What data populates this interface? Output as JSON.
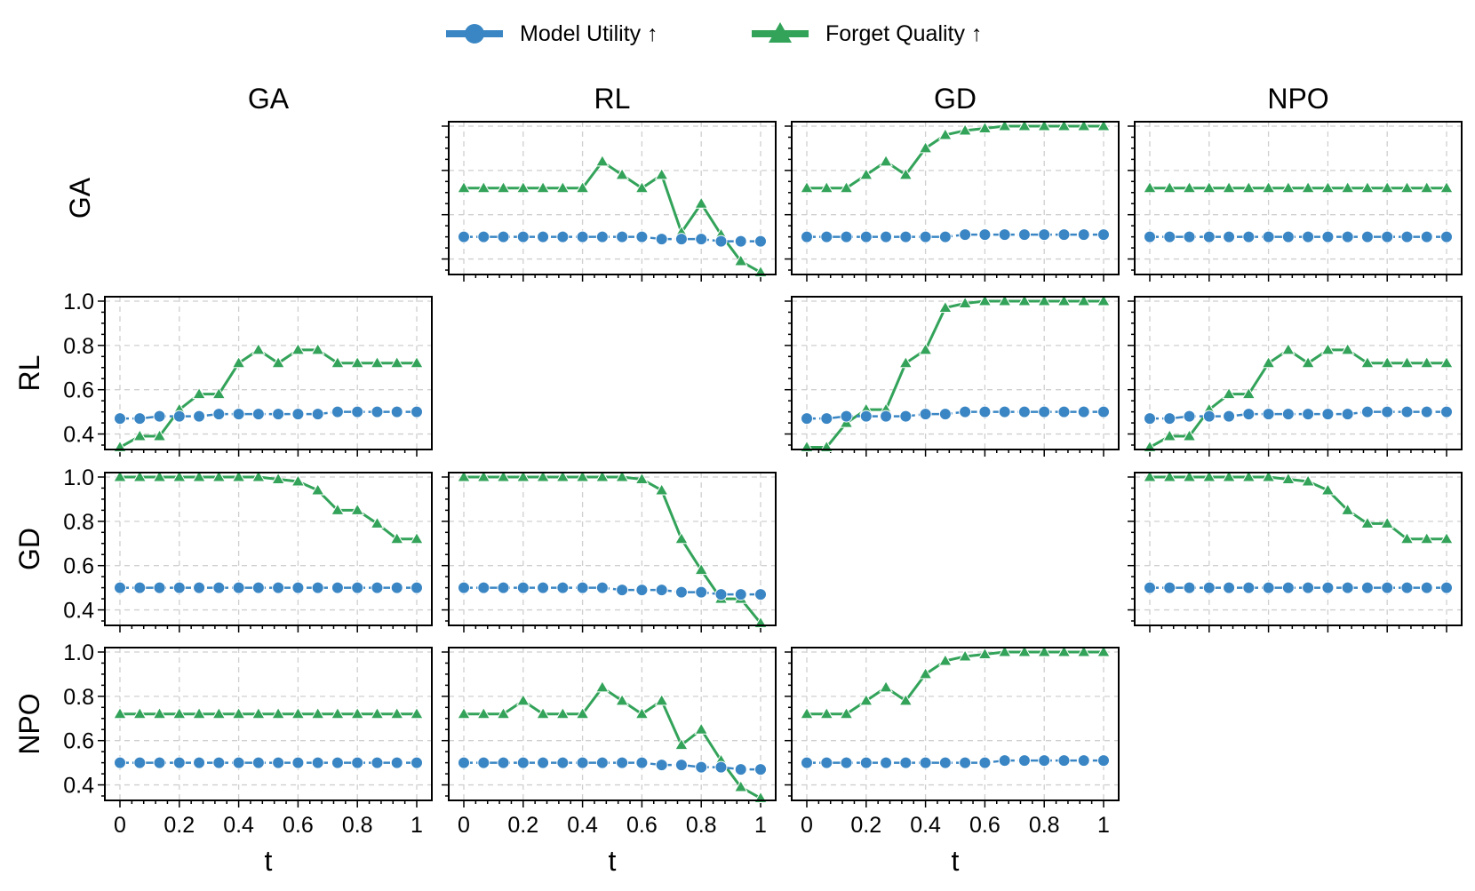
{
  "legend": {
    "placement": "top-center",
    "items": [
      {
        "label": "Model Utility ↑",
        "color": "#3a86c4",
        "marker": "circle"
      },
      {
        "label": "Forget Quality ↑",
        "color": "#33a35a",
        "marker": "triangle"
      }
    ]
  },
  "column_titles": [
    "GA",
    "RL",
    "GD",
    "NPO"
  ],
  "row_titles": [
    "GA",
    "RL",
    "GD",
    "NPO"
  ],
  "xlabel": "t",
  "x_tick_labels": [
    "0",
    "0.2",
    "0.4",
    "0.6",
    "0.8",
    "1"
  ],
  "y_tick_labels": [
    "0.4",
    "0.6",
    "0.8",
    "1.0"
  ],
  "chart_data": {
    "type": "line",
    "grid": true,
    "xlim": [
      0,
      1
    ],
    "ylim": [
      0.33,
      1.02
    ],
    "x": [
      0,
      0.0667,
      0.1333,
      0.2,
      0.2667,
      0.3333,
      0.4,
      0.4667,
      0.5333,
      0.6,
      0.6667,
      0.7333,
      0.8,
      0.8667,
      0.9333,
      1.0
    ],
    "series_names": [
      "Model Utility ↑",
      "Forget Quality ↑"
    ],
    "panels": [
      {
        "row": "GA",
        "col": "RL",
        "model_utility": [
          0.5,
          0.5,
          0.5,
          0.5,
          0.5,
          0.5,
          0.5,
          0.5,
          0.5,
          0.5,
          0.49,
          0.49,
          0.49,
          0.48,
          0.48,
          0.48
        ],
        "forget_quality": [
          0.72,
          0.72,
          0.72,
          0.72,
          0.72,
          0.72,
          0.72,
          0.84,
          0.78,
          0.72,
          0.78,
          0.52,
          0.65,
          0.51,
          0.39,
          0.34
        ]
      },
      {
        "row": "GA",
        "col": "GD",
        "model_utility": [
          0.5,
          0.5,
          0.5,
          0.5,
          0.5,
          0.5,
          0.5,
          0.5,
          0.51,
          0.51,
          0.51,
          0.51,
          0.51,
          0.51,
          0.51,
          0.51
        ],
        "forget_quality": [
          0.72,
          0.72,
          0.72,
          0.78,
          0.84,
          0.78,
          0.9,
          0.96,
          0.98,
          0.99,
          1.0,
          1.0,
          1.0,
          1.0,
          1.0,
          1.0
        ]
      },
      {
        "row": "GA",
        "col": "NPO",
        "model_utility": [
          0.5,
          0.5,
          0.5,
          0.5,
          0.5,
          0.5,
          0.5,
          0.5,
          0.5,
          0.5,
          0.5,
          0.5,
          0.5,
          0.5,
          0.5,
          0.5
        ],
        "forget_quality": [
          0.72,
          0.72,
          0.72,
          0.72,
          0.72,
          0.72,
          0.72,
          0.72,
          0.72,
          0.72,
          0.72,
          0.72,
          0.72,
          0.72,
          0.72,
          0.72
        ]
      },
      {
        "row": "RL",
        "col": "GA",
        "model_utility": [
          0.47,
          0.47,
          0.48,
          0.48,
          0.48,
          0.49,
          0.49,
          0.49,
          0.49,
          0.49,
          0.49,
          0.5,
          0.5,
          0.5,
          0.5,
          0.5
        ],
        "forget_quality": [
          0.34,
          0.39,
          0.39,
          0.51,
          0.58,
          0.58,
          0.72,
          0.78,
          0.72,
          0.78,
          0.78,
          0.72,
          0.72,
          0.72,
          0.72,
          0.72
        ]
      },
      {
        "row": "RL",
        "col": "GD",
        "model_utility": [
          0.47,
          0.47,
          0.48,
          0.48,
          0.48,
          0.48,
          0.49,
          0.49,
          0.5,
          0.5,
          0.5,
          0.5,
          0.5,
          0.5,
          0.5,
          0.5
        ],
        "forget_quality": [
          0.34,
          0.34,
          0.45,
          0.51,
          0.51,
          0.72,
          0.78,
          0.97,
          0.99,
          1.0,
          1.0,
          1.0,
          1.0,
          1.0,
          1.0,
          1.0
        ]
      },
      {
        "row": "RL",
        "col": "NPO",
        "model_utility": [
          0.47,
          0.47,
          0.48,
          0.48,
          0.48,
          0.49,
          0.49,
          0.49,
          0.49,
          0.49,
          0.49,
          0.5,
          0.5,
          0.5,
          0.5,
          0.5
        ],
        "forget_quality": [
          0.34,
          0.39,
          0.39,
          0.51,
          0.58,
          0.58,
          0.72,
          0.78,
          0.72,
          0.78,
          0.78,
          0.72,
          0.72,
          0.72,
          0.72,
          0.72
        ]
      },
      {
        "row": "GD",
        "col": "GA",
        "model_utility": [
          0.5,
          0.5,
          0.5,
          0.5,
          0.5,
          0.5,
          0.5,
          0.5,
          0.5,
          0.5,
          0.5,
          0.5,
          0.5,
          0.5,
          0.5,
          0.5
        ],
        "forget_quality": [
          1.0,
          1.0,
          1.0,
          1.0,
          1.0,
          1.0,
          1.0,
          1.0,
          0.99,
          0.98,
          0.94,
          0.85,
          0.85,
          0.79,
          0.72,
          0.72
        ]
      },
      {
        "row": "GD",
        "col": "RL",
        "model_utility": [
          0.5,
          0.5,
          0.5,
          0.5,
          0.5,
          0.5,
          0.5,
          0.5,
          0.49,
          0.49,
          0.49,
          0.48,
          0.48,
          0.47,
          0.47,
          0.47
        ],
        "forget_quality": [
          1.0,
          1.0,
          1.0,
          1.0,
          1.0,
          1.0,
          1.0,
          1.0,
          1.0,
          0.99,
          0.94,
          0.72,
          0.58,
          0.45,
          0.45,
          0.34
        ]
      },
      {
        "row": "GD",
        "col": "NPO",
        "model_utility": [
          0.5,
          0.5,
          0.5,
          0.5,
          0.5,
          0.5,
          0.5,
          0.5,
          0.5,
          0.5,
          0.5,
          0.5,
          0.5,
          0.5,
          0.5,
          0.5
        ],
        "forget_quality": [
          1.0,
          1.0,
          1.0,
          1.0,
          1.0,
          1.0,
          1.0,
          0.99,
          0.98,
          0.94,
          0.85,
          0.79,
          0.79,
          0.72,
          0.72,
          0.72
        ]
      },
      {
        "row": "NPO",
        "col": "GA",
        "model_utility": [
          0.5,
          0.5,
          0.5,
          0.5,
          0.5,
          0.5,
          0.5,
          0.5,
          0.5,
          0.5,
          0.5,
          0.5,
          0.5,
          0.5,
          0.5,
          0.5
        ],
        "forget_quality": [
          0.72,
          0.72,
          0.72,
          0.72,
          0.72,
          0.72,
          0.72,
          0.72,
          0.72,
          0.72,
          0.72,
          0.72,
          0.72,
          0.72,
          0.72,
          0.72
        ]
      },
      {
        "row": "NPO",
        "col": "RL",
        "model_utility": [
          0.5,
          0.5,
          0.5,
          0.5,
          0.5,
          0.5,
          0.5,
          0.5,
          0.5,
          0.5,
          0.49,
          0.49,
          0.48,
          0.48,
          0.47,
          0.47
        ],
        "forget_quality": [
          0.72,
          0.72,
          0.72,
          0.78,
          0.72,
          0.72,
          0.72,
          0.84,
          0.78,
          0.72,
          0.78,
          0.58,
          0.65,
          0.51,
          0.39,
          0.34
        ]
      },
      {
        "row": "NPO",
        "col": "GD",
        "model_utility": [
          0.5,
          0.5,
          0.5,
          0.5,
          0.5,
          0.5,
          0.5,
          0.5,
          0.5,
          0.5,
          0.51,
          0.51,
          0.51,
          0.51,
          0.51,
          0.51
        ],
        "forget_quality": [
          0.72,
          0.72,
          0.72,
          0.78,
          0.84,
          0.78,
          0.9,
          0.96,
          0.98,
          0.99,
          1.0,
          1.0,
          1.0,
          1.0,
          1.0,
          1.0
        ]
      }
    ]
  }
}
